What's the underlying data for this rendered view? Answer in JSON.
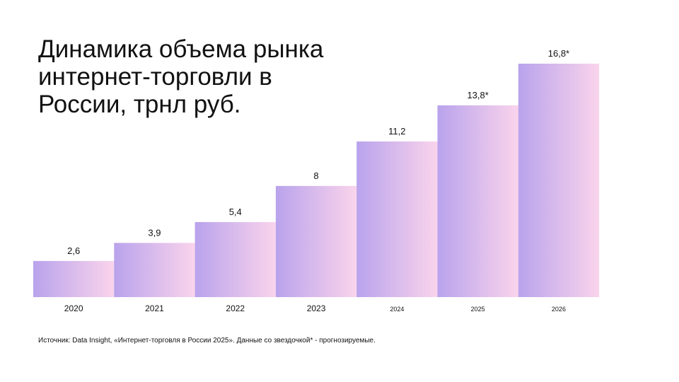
{
  "chart_data": {
    "type": "bar",
    "title": "Динамика объема рынка интернет-торговли в России, трнл руб.",
    "categories": [
      "2020",
      "2021",
      "2022",
      "2023",
      "2024",
      "2025",
      "2026"
    ],
    "values": [
      2.6,
      3.9,
      5.4,
      8,
      11.2,
      13.8,
      16.8
    ],
    "value_labels": [
      "2,6",
      "3,9",
      "5,4",
      "8",
      "11,2",
      "13,8*",
      "16,8*"
    ],
    "colors": [
      "#b9a3ec",
      "#fad4ec"
    ],
    "source": "Источник: Data Insight, «Интернет-торговля в России 2025». Данные со звездочкой* - прогнозируемые."
  }
}
